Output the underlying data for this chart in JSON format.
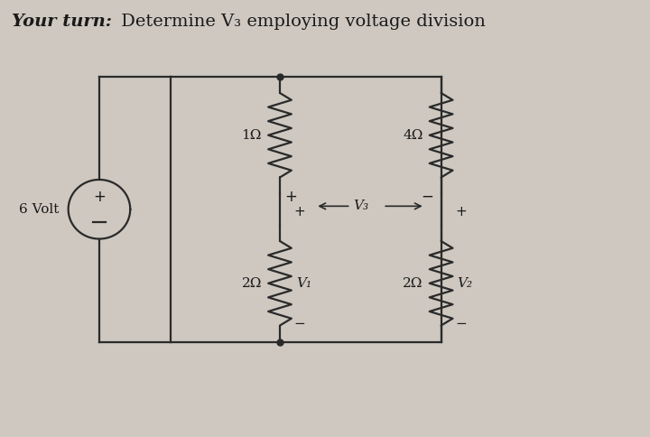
{
  "title_bold": "Your turn:",
  "title_normal": " Determine V₃ employing voltage division",
  "bg_color": "#cec8c0",
  "line_color": "#2a2a2a",
  "text_color": "#1a1a1a",
  "source_label": "6 Volt",
  "r1_label": "1Ω",
  "r2_label": "2Ω",
  "r3_label": "4Ω",
  "r4_label": "2Ω",
  "v1_label": "V₁",
  "v2_label": "V₂",
  "v3_label": "V₃",
  "title_fontsize": 14,
  "circuit_lw": 1.6
}
